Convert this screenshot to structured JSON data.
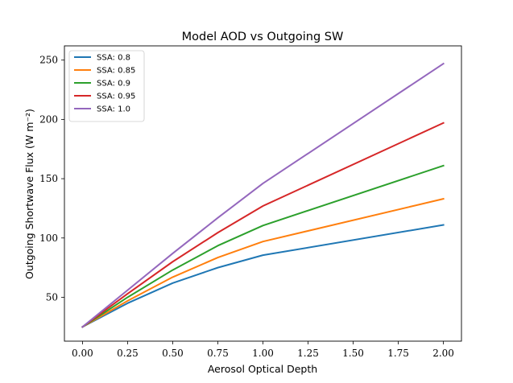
{
  "chart_data": {
    "type": "line",
    "title": "Model AOD vs Outgoing SW",
    "xlabel": "Aerosol Optical Depth",
    "ylabel": "Outgoing Shortwave Flux (W m⁻²)",
    "xlim": [
      -0.1,
      2.1
    ],
    "ylim": [
      13,
      262
    ],
    "xticks": [
      "0.00",
      "0.25",
      "0.50",
      "0.75",
      "1.00",
      "1.25",
      "1.50",
      "1.75",
      "2.00"
    ],
    "xtick_values": [
      0,
      0.25,
      0.5,
      0.75,
      1.0,
      1.25,
      1.5,
      1.75,
      2.0
    ],
    "yticks": [
      "50",
      "100",
      "150",
      "200",
      "250"
    ],
    "ytick_values": [
      50,
      100,
      150,
      200,
      250
    ],
    "grid": false,
    "legend_position": "top-left",
    "x": [
      0,
      0.25,
      0.5,
      0.75,
      1.0,
      2.0
    ],
    "series": [
      {
        "name": "SSA: 0.8",
        "color": "#1f77b4",
        "values": [
          25,
          45,
          62,
          75,
          85.5,
          111
        ]
      },
      {
        "name": "SSA: 0.85",
        "color": "#ff7f0e",
        "values": [
          25,
          47,
          67,
          83.5,
          97,
          133
        ]
      },
      {
        "name": "SSA: 0.9",
        "color": "#2ca02c",
        "values": [
          25,
          50,
          73,
          93.5,
          110.5,
          161
        ]
      },
      {
        "name": "SSA: 0.95",
        "color": "#d62728",
        "values": [
          25,
          53,
          80,
          104.5,
          127,
          197
        ]
      },
      {
        "name": "SSA: 1.0",
        "color": "#9467bd",
        "values": [
          25,
          56,
          87,
          117,
          146,
          247
        ]
      }
    ]
  }
}
